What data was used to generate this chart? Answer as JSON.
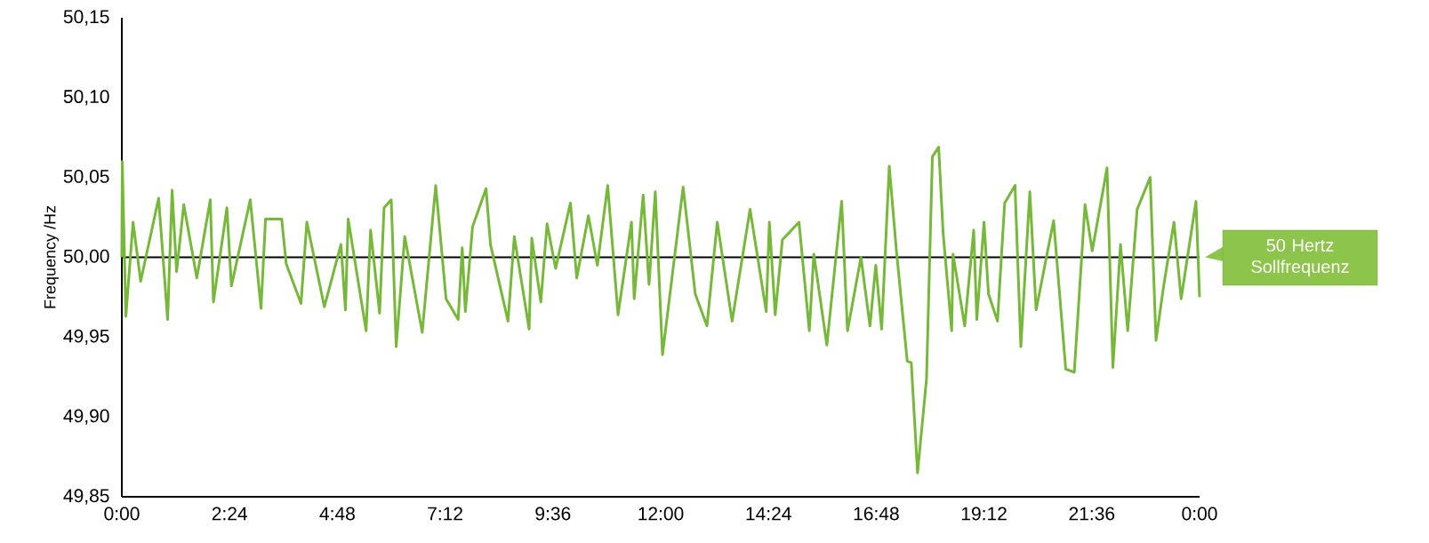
{
  "chart_data": {
    "type": "line",
    "ylabel": "Frequency /Hz",
    "color": "#76b837",
    "x": [
      0.0,
      0.01,
      0.09,
      0.25,
      0.42,
      0.82,
      1.02,
      1.12,
      1.22,
      1.38,
      1.67,
      1.97,
      2.04,
      2.34,
      2.44,
      2.86,
      3.1,
      3.2,
      3.56,
      3.66,
      3.99,
      4.12,
      4.51,
      4.88,
      4.98,
      5.04,
      5.44,
      5.54,
      5.74,
      5.84,
      6.0,
      6.11,
      6.3,
      6.69,
      6.99,
      7.22,
      7.49,
      7.58,
      7.65,
      7.81,
      8.11,
      8.21,
      8.6,
      8.74,
      9.07,
      9.13,
      9.33,
      9.47,
      9.66,
      9.99,
      10.13,
      10.39,
      10.59,
      10.82,
      11.05,
      11.35,
      11.41,
      11.61,
      11.74,
      11.88,
      12.04,
      12.5,
      12.77,
      13.03,
      13.26,
      13.59,
      13.99,
      14.35,
      14.42,
      14.55,
      14.71,
      15.08,
      15.31,
      15.41,
      15.7,
      16.03,
      16.16,
      16.46,
      16.66,
      16.79,
      16.92,
      17.09,
      17.25,
      17.49,
      17.58,
      17.72,
      17.92,
      18.05,
      18.19,
      18.29,
      18.48,
      18.51,
      18.77,
      18.97,
      19.04,
      19.2,
      19.3,
      19.5,
      19.66,
      19.89,
      20.02,
      20.22,
      20.36,
      20.75,
      21.02,
      21.21,
      21.45,
      21.61,
      21.94,
      22.07,
      22.24,
      22.4,
      22.61,
      22.9,
      23.03,
      23.2,
      23.43,
      23.59,
      23.92,
      24.0
    ],
    "values": [
      50.0,
      50.06,
      49.963,
      50.022,
      49.985,
      50.037,
      49.961,
      50.042,
      49.991,
      50.033,
      49.987,
      50.036,
      49.972,
      50.031,
      49.982,
      50.036,
      49.968,
      50.024,
      50.024,
      49.996,
      49.971,
      50.022,
      49.969,
      50.008,
      49.967,
      50.024,
      49.954,
      50.017,
      49.965,
      50.031,
      50.036,
      49.944,
      50.013,
      49.953,
      50.045,
      49.974,
      49.961,
      50.006,
      49.966,
      50.019,
      50.043,
      50.008,
      49.96,
      50.013,
      49.955,
      50.012,
      49.972,
      50.021,
      49.993,
      50.034,
      49.987,
      50.026,
      49.995,
      50.045,
      49.964,
      50.022,
      49.974,
      50.039,
      49.983,
      50.041,
      49.939,
      50.044,
      49.977,
      49.957,
      50.022,
      49.96,
      50.03,
      49.966,
      50.022,
      49.964,
      50.011,
      50.022,
      49.954,
      50.002,
      49.945,
      50.035,
      49.954,
      50.0,
      49.957,
      49.995,
      49.955,
      50.057,
      50.004,
      49.935,
      49.934,
      49.865,
      49.924,
      50.063,
      50.069,
      50.015,
      49.954,
      50.002,
      49.957,
      50.017,
      49.961,
      50.022,
      49.977,
      49.96,
      50.034,
      50.045,
      49.944,
      50.041,
      49.967,
      50.023,
      49.93,
      49.928,
      50.033,
      50.004,
      50.056,
      49.931,
      50.008,
      49.954,
      50.03,
      50.05,
      49.948,
      49.982,
      50.022,
      49.974,
      50.035,
      49.975
    ],
    "xlim": [
      0,
      24
    ],
    "xticks": [
      {
        "value": 0,
        "label": "0:00"
      },
      {
        "value": 2.4,
        "label": "2:24"
      },
      {
        "value": 4.8,
        "label": "4:48"
      },
      {
        "value": 7.2,
        "label": "7:12"
      },
      {
        "value": 9.6,
        "label": "9:36"
      },
      {
        "value": 12,
        "label": "12:00"
      },
      {
        "value": 14.4,
        "label": "14:24"
      },
      {
        "value": 16.8,
        "label": "16:48"
      },
      {
        "value": 19.2,
        "label": "19:12"
      },
      {
        "value": 21.6,
        "label": "21:36"
      },
      {
        "value": 24,
        "label": "0:00"
      }
    ],
    "ylim": [
      49.85,
      50.15
    ],
    "yticks": [
      {
        "value": 49.85,
        "label": "49,85"
      },
      {
        "value": 49.9,
        "label": "49,90"
      },
      {
        "value": 49.95,
        "label": "49,95"
      },
      {
        "value": 50.0,
        "label": "50,00"
      },
      {
        "value": 50.05,
        "label": "50,05"
      },
      {
        "value": 50.1,
        "label": "50,10"
      },
      {
        "value": 50.15,
        "label": "50,15"
      }
    ],
    "ref_lines": [
      {
        "axis": "y",
        "value": 50.0,
        "label": "50 Hertz Sollfrequenz",
        "color": "#000000"
      }
    ]
  }
}
